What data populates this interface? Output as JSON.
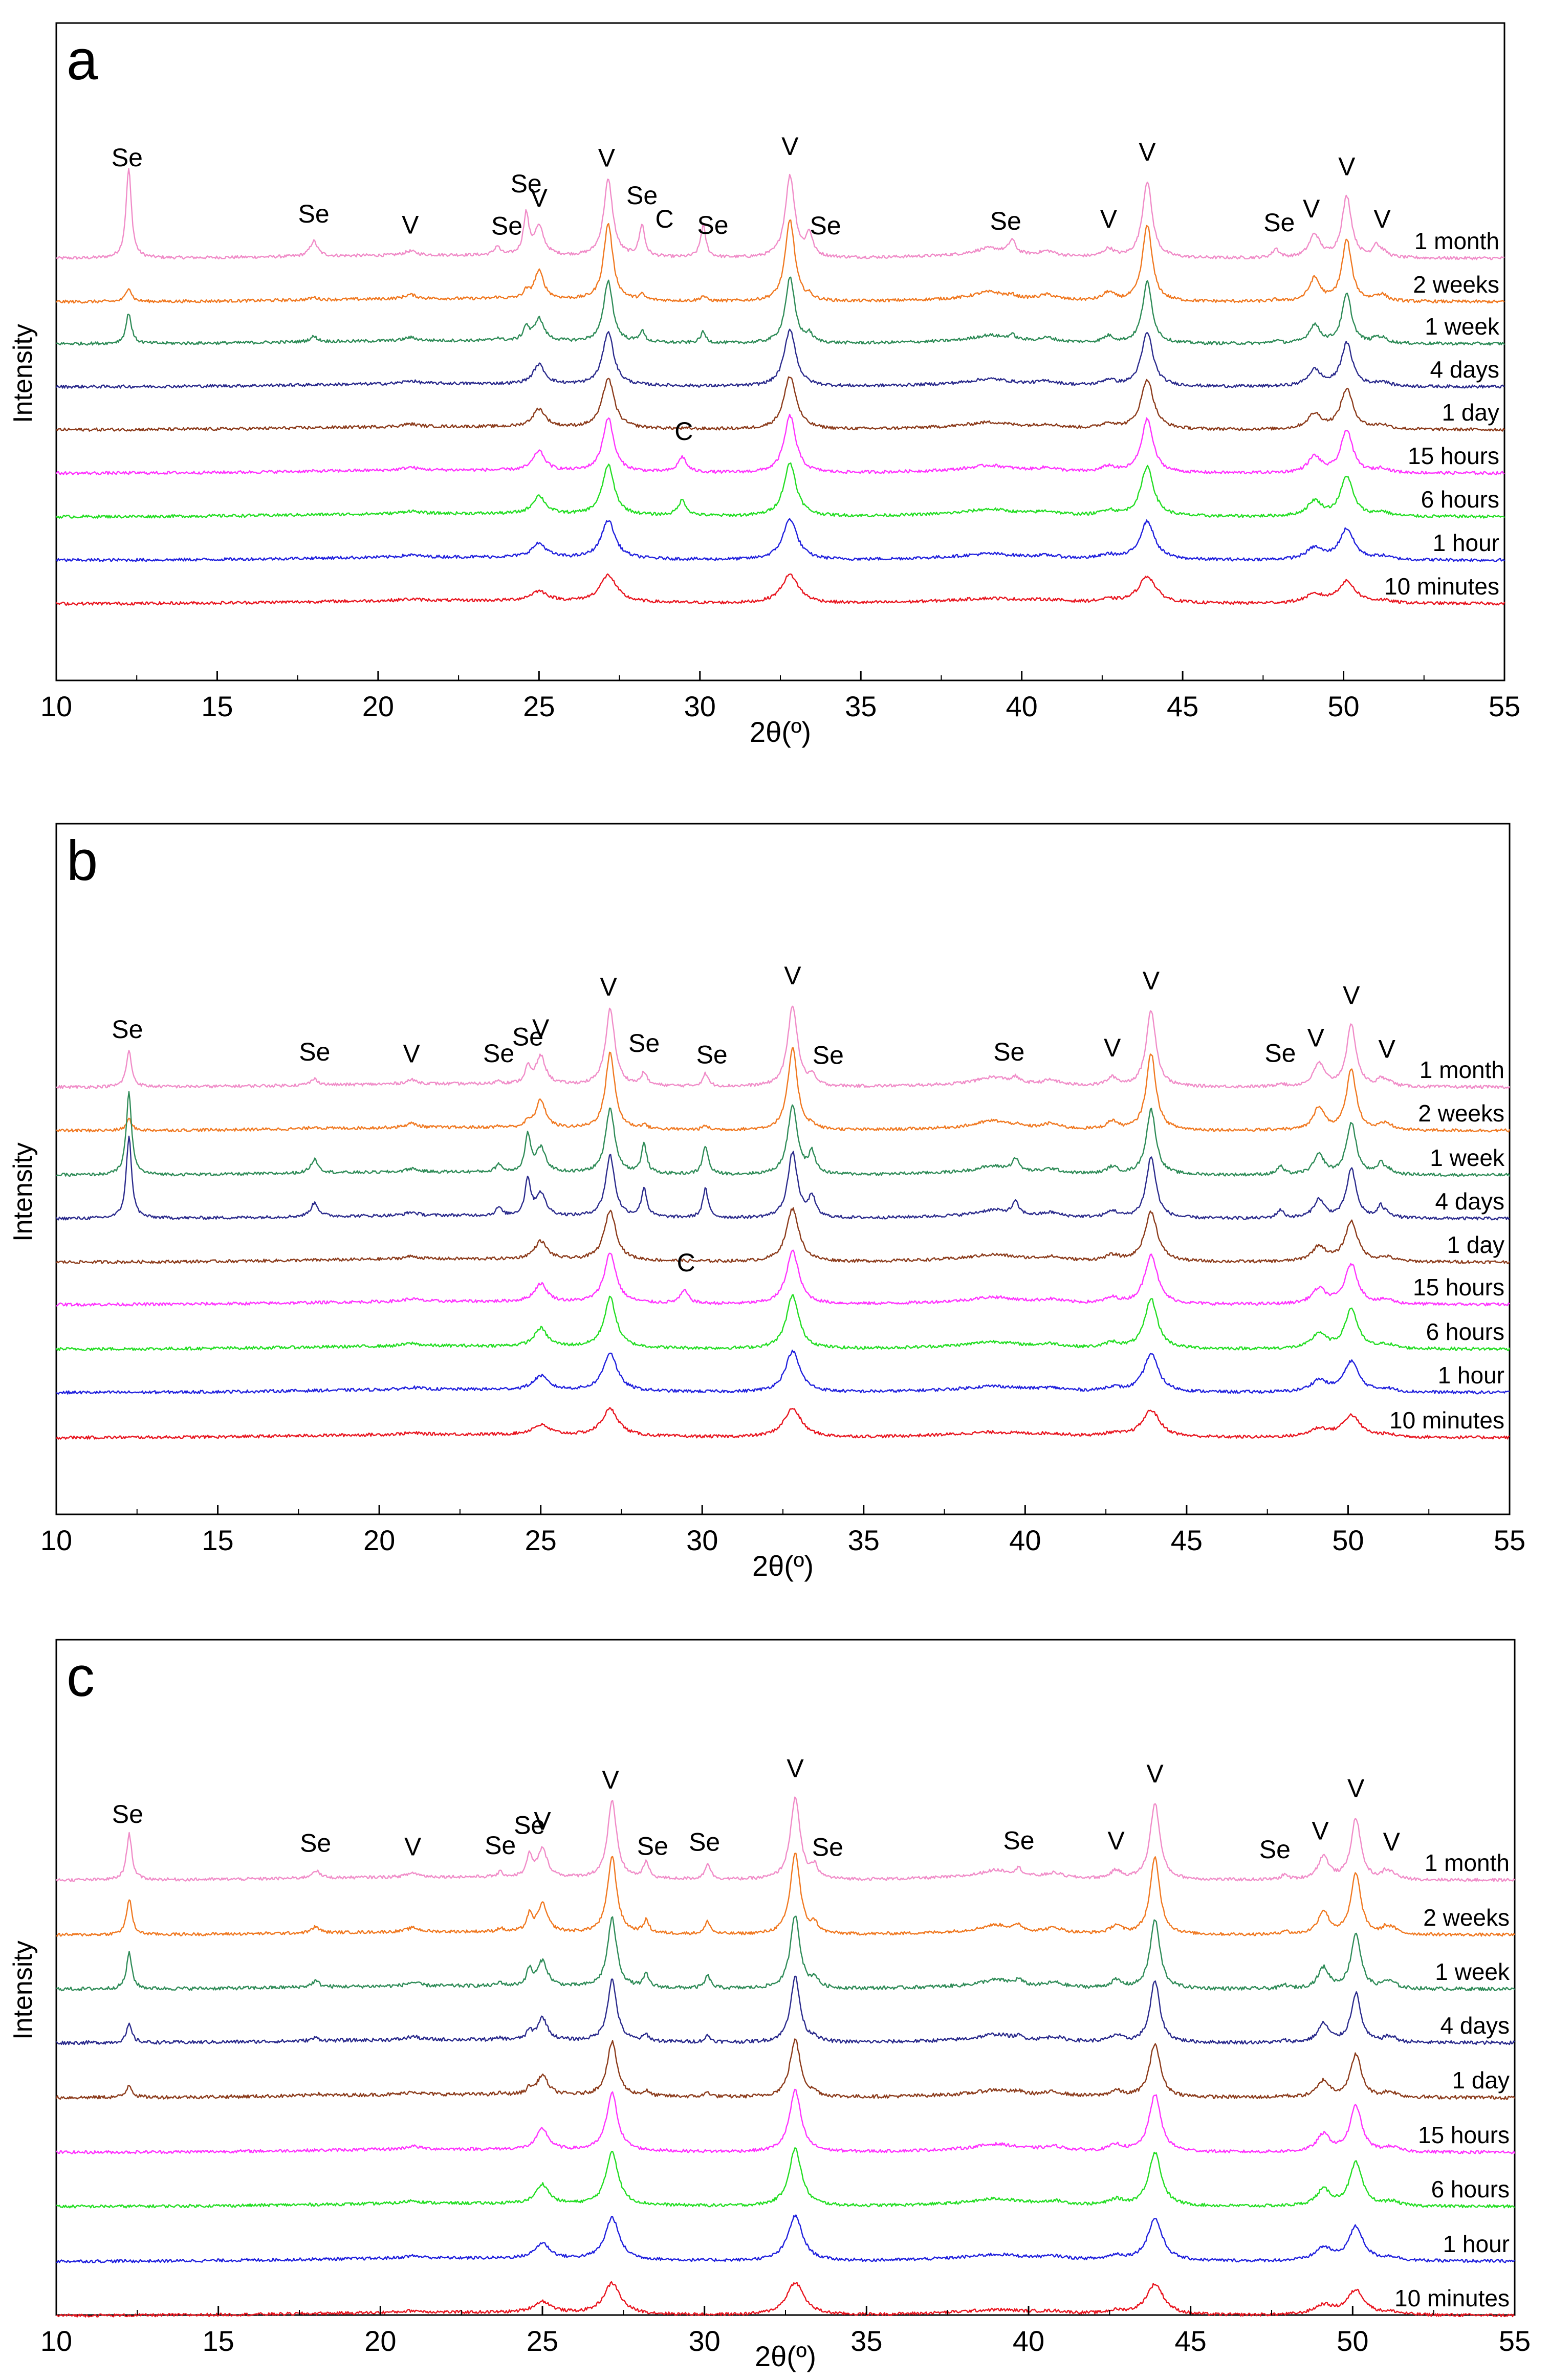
{
  "chart_data": [
    {
      "type": "line",
      "panel_label": "a",
      "xlabel": "2θ(º)",
      "ylabel": "Intensity",
      "xlim": [
        10,
        55
      ],
      "x_ticks": [
        "10",
        "15",
        "20",
        "25",
        "30",
        "35",
        "40",
        "45",
        "50",
        "55"
      ],
      "series": [
        {
          "name": "1 month",
          "color": "#f08cc8"
        },
        {
          "name": "2 weeks",
          "color": "#f07820"
        },
        {
          "name": "1 week",
          "color": "#2e8b57"
        },
        {
          "name": "4 days",
          "color": "#2a2a8c"
        },
        {
          "name": "1 day",
          "color": "#8b3a1a"
        },
        {
          "name": "15 hours",
          "color": "#ff33ff"
        },
        {
          "name": "6 hours",
          "color": "#22dd22"
        },
        {
          "name": "1 hour",
          "color": "#1f1fdd"
        },
        {
          "name": "10 minutes",
          "color": "#e8141e"
        }
      ],
      "peak_annotations": [
        {
          "text": "Se",
          "x": 12.2
        },
        {
          "text": "Se",
          "x": 18.0
        },
        {
          "text": "V",
          "x": 21.0
        },
        {
          "text": "Se",
          "x": 24.0
        },
        {
          "text": "Se",
          "x": 24.6
        },
        {
          "text": "V",
          "x": 25.0
        },
        {
          "text": "V",
          "x": 27.1
        },
        {
          "text": "Se",
          "x": 28.2
        },
        {
          "text": "C",
          "x": 28.9
        },
        {
          "text": "Se",
          "x": 30.4
        },
        {
          "text": "V",
          "x": 32.8
        },
        {
          "text": "Se",
          "x": 33.9
        },
        {
          "text": "Se",
          "x": 39.5
        },
        {
          "text": "V",
          "x": 42.7
        },
        {
          "text": "V",
          "x": 43.9
        },
        {
          "text": "Se",
          "x": 48.0
        },
        {
          "text": "V",
          "x": 49.0
        },
        {
          "text": "V",
          "x": 50.1
        },
        {
          "text": "V",
          "x": 51.2
        },
        {
          "text": "C",
          "x": 29.5
        }
      ]
    },
    {
      "type": "line",
      "panel_label": "b",
      "xlabel": "2θ(º)",
      "ylabel": "Intensity",
      "xlim": [
        10,
        55
      ],
      "x_ticks": [
        "10",
        "15",
        "20",
        "25",
        "30",
        "35",
        "40",
        "45",
        "50",
        "55"
      ],
      "series": [
        {
          "name": "1 month",
          "color": "#f08cc8"
        },
        {
          "name": "2 weeks",
          "color": "#f07820"
        },
        {
          "name": "1 week",
          "color": "#2e8b57"
        },
        {
          "name": "4 days",
          "color": "#2a2a8c"
        },
        {
          "name": "1 day",
          "color": "#8b3a1a"
        },
        {
          "name": "15 hours",
          "color": "#ff33ff"
        },
        {
          "name": "6 hours",
          "color": "#22dd22"
        },
        {
          "name": "1 hour",
          "color": "#1f1fdd"
        },
        {
          "name": "10 minutes",
          "color": "#e8141e"
        }
      ],
      "peak_annotations": [
        {
          "text": "Se",
          "x": 12.2
        },
        {
          "text": "Se",
          "x": 18.0
        },
        {
          "text": "V",
          "x": 21.0
        },
        {
          "text": "Se",
          "x": 23.7
        },
        {
          "text": "Se",
          "x": 24.6
        },
        {
          "text": "V",
          "x": 25.0
        },
        {
          "text": "V",
          "x": 27.1
        },
        {
          "text": "Se",
          "x": 28.2
        },
        {
          "text": "Se",
          "x": 30.3
        },
        {
          "text": "V",
          "x": 32.8
        },
        {
          "text": "Se",
          "x": 33.9
        },
        {
          "text": "Se",
          "x": 39.5
        },
        {
          "text": "V",
          "x": 42.7
        },
        {
          "text": "V",
          "x": 43.9
        },
        {
          "text": "Se",
          "x": 47.9
        },
        {
          "text": "V",
          "x": 49.0
        },
        {
          "text": "V",
          "x": 50.1
        },
        {
          "text": "V",
          "x": 51.2
        },
        {
          "text": "C",
          "x": 29.5
        }
      ]
    },
    {
      "type": "line",
      "panel_label": "c",
      "xlabel": "2θ(º)",
      "ylabel": "Intensity",
      "xlim": [
        10,
        55
      ],
      "x_ticks": [
        "10",
        "15",
        "20",
        "25",
        "30",
        "35",
        "40",
        "45",
        "50",
        "55"
      ],
      "series": [
        {
          "name": "1 month",
          "color": "#f08cc8"
        },
        {
          "name": "2 weeks",
          "color": "#f07820"
        },
        {
          "name": "1 week",
          "color": "#2e8b57"
        },
        {
          "name": "4 days",
          "color": "#2a2a8c"
        },
        {
          "name": "1 day",
          "color": "#8b3a1a"
        },
        {
          "name": "15 hours",
          "color": "#ff33ff"
        },
        {
          "name": "6 hours",
          "color": "#22dd22"
        },
        {
          "name": "1 hour",
          "color": "#1f1fdd"
        },
        {
          "name": "10 minutes",
          "color": "#e8141e"
        }
      ],
      "peak_annotations": [
        {
          "text": "Se",
          "x": 12.2
        },
        {
          "text": "Se",
          "x": 18.0
        },
        {
          "text": "V",
          "x": 21.0
        },
        {
          "text": "Se",
          "x": 23.7
        },
        {
          "text": "Se",
          "x": 24.6
        },
        {
          "text": "V",
          "x": 25.0
        },
        {
          "text": "V",
          "x": 27.1
        },
        {
          "text": "Se",
          "x": 28.4
        },
        {
          "text": "Se",
          "x": 30.0
        },
        {
          "text": "V",
          "x": 32.8
        },
        {
          "text": "Se",
          "x": 33.8
        },
        {
          "text": "Se",
          "x": 39.7
        },
        {
          "text": "V",
          "x": 42.7
        },
        {
          "text": "V",
          "x": 43.9
        },
        {
          "text": "Se",
          "x": 47.6
        },
        {
          "text": "V",
          "x": 49.0
        },
        {
          "text": "V",
          "x": 50.1
        },
        {
          "text": "V",
          "x": 51.2
        }
      ]
    }
  ]
}
